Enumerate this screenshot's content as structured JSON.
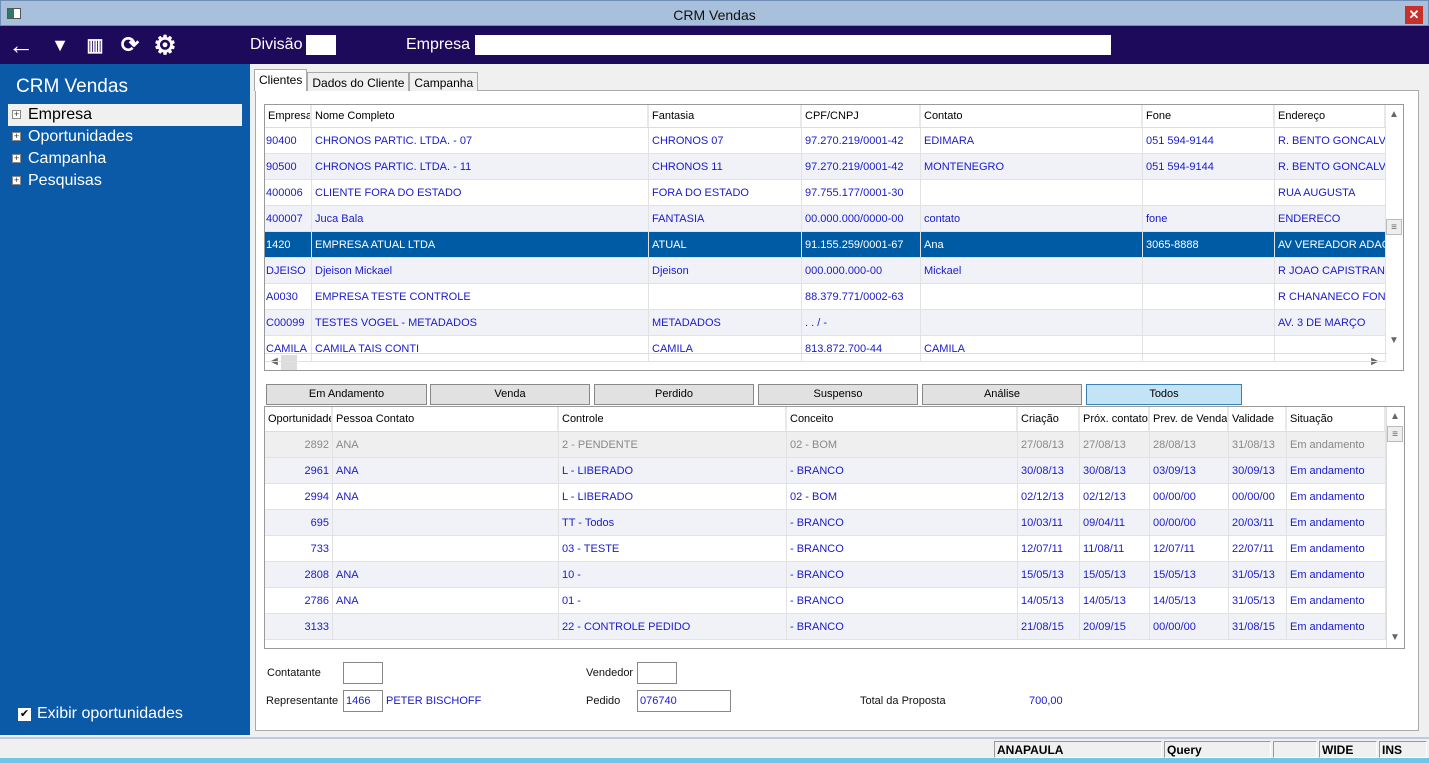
{
  "window": {
    "title": "CRM Vendas",
    "close_icon": "close-icon"
  },
  "toolbar": {
    "icons": [
      "back-arrow-icon",
      "filter-icon",
      "trash-icon",
      "refresh-icon",
      "gear-icon"
    ],
    "divisao_label": "Divisão",
    "divisao_value": "",
    "empresa_label": "Empresa",
    "empresa_value": ""
  },
  "sidebar": {
    "title": "CRM Vendas",
    "items": [
      {
        "label": "Empresa"
      },
      {
        "label": "Oportunidades"
      },
      {
        "label": "Campanha"
      },
      {
        "label": "Pesquisas"
      }
    ],
    "exibir_label": "Exibir oportunidades",
    "exibir_checked": true
  },
  "tabs": [
    {
      "label": "Clientes"
    },
    {
      "label": "Dados do Cliente"
    },
    {
      "label": "Campanha"
    }
  ],
  "clients": {
    "columns": [
      "Empresa",
      "Nome Completo",
      "Fantasia",
      "CPF/CNPJ",
      "Contato",
      "Fone",
      "Endereço"
    ],
    "rows": [
      [
        "90400",
        "CHRONOS PARTIC. LTDA. - 07",
        "CHRONOS 07",
        "97.270.219/0001-42",
        "EDIMARA",
        "051 594-9144",
        "R. BENTO GONCALVES"
      ],
      [
        "90500",
        "CHRONOS PARTIC. LTDA. - 11",
        "CHRONOS 11",
        "97.270.219/0001-42",
        "MONTENEGRO",
        "051 594-9144",
        "R. BENTO GONCALVES"
      ],
      [
        "400006",
        "CLIENTE FORA DO ESTADO",
        "FORA DO ESTADO",
        "97.755.177/0001-30",
        "",
        "",
        "RUA AUGUSTA"
      ],
      [
        "400007",
        "Juca Bala",
        "FANTASIA",
        "00.000.000/0000-00",
        "contato",
        "fone",
        "ENDERECO"
      ],
      [
        "1420",
        "EMPRESA ATUAL LTDA",
        "ATUAL",
        "91.155.259/0001-67",
        "Ana",
        "3065-8888",
        "AV VEREADOR ADAO F"
      ],
      [
        "DJEISO",
        "Djeison Mickael",
        "Djeison",
        "000.000.000-00",
        "Mickael",
        "",
        "R JOAO CAPISTRANO"
      ],
      [
        "A0030",
        "EMPRESA TESTE CONTROLE",
        "",
        "88.379.771/0002-63",
        "",
        "",
        "R CHANANECO FONTOURA"
      ],
      [
        "C00099",
        "TESTES VOGEL - METADADOS",
        "METADADOS",
        " .  .  /  -",
        "",
        "",
        "AV. 3 DE MARÇO"
      ],
      [
        "CAMILA",
        "CAMILA TAIS CONTI",
        "CAMILA",
        "813.872.700-44",
        "CAMILA",
        "",
        ""
      ]
    ],
    "selected_index": 4
  },
  "filters": [
    {
      "label": "Em Andamento"
    },
    {
      "label": "Venda"
    },
    {
      "label": "Perdido"
    },
    {
      "label": "Suspenso"
    },
    {
      "label": "Análise"
    },
    {
      "label": "Todos",
      "active": true
    }
  ],
  "opps": {
    "columns": [
      "Oportunidade",
      "Pessoa Contato",
      "Controle",
      "Conceito",
      "Criação",
      "Próx. contato",
      "Prev. de Venda",
      "Validade",
      "Situação"
    ],
    "rows": [
      [
        "2892",
        "ANA",
        "2 - PENDENTE",
        "02 - BOM",
        "27/08/13",
        "27/08/13",
        "28/08/13",
        "31/08/13",
        "Em andamento"
      ],
      [
        "2961",
        "ANA",
        "L - LIBERADO",
        " - BRANCO",
        "30/08/13",
        "30/08/13",
        "03/09/13",
        "30/09/13",
        "Em andamento"
      ],
      [
        "2994",
        "ANA",
        "L - LIBERADO",
        "02 - BOM",
        "02/12/13",
        "02/12/13",
        "00/00/00",
        "00/00/00",
        "Em andamento"
      ],
      [
        "695",
        "",
        "TT - Todos",
        " - BRANCO",
        "10/03/11",
        "09/04/11",
        "00/00/00",
        "20/03/11",
        "Em andamento"
      ],
      [
        "733",
        "",
        "03 - TESTE",
        " - BRANCO",
        "12/07/11",
        "11/08/11",
        "12/07/11",
        "22/07/11",
        "Em andamento"
      ],
      [
        "2808",
        "ANA",
        "10 -",
        " - BRANCO",
        "15/05/13",
        "15/05/13",
        "15/05/13",
        "31/05/13",
        "Em andamento"
      ],
      [
        "2786",
        "ANA",
        "01 -",
        " - BRANCO",
        "14/05/13",
        "14/05/13",
        "14/05/13",
        "31/05/13",
        "Em andamento"
      ],
      [
        "3133",
        "",
        "22 - CONTROLE PEDIDO",
        " - BRANCO",
        "21/08/15",
        "20/09/15",
        "00/00/00",
        "31/08/15",
        "Em andamento"
      ]
    ]
  },
  "form": {
    "contatante_label": "Contatante",
    "contatante_value": "",
    "vendedor_label": "Vendedor",
    "vendedor_value": "",
    "representante_label": "Representante",
    "representante_code": "1466",
    "representante_name": "PETER BISCHOFF",
    "pedido_label": "Pedido",
    "pedido_value": "076740",
    "total_label": "Total da Proposta",
    "total_value": "700,00"
  },
  "status": {
    "user": "ANAPAULA",
    "mode": "Query",
    "blank": "",
    "wide": "WIDE",
    "ins": "INS"
  }
}
